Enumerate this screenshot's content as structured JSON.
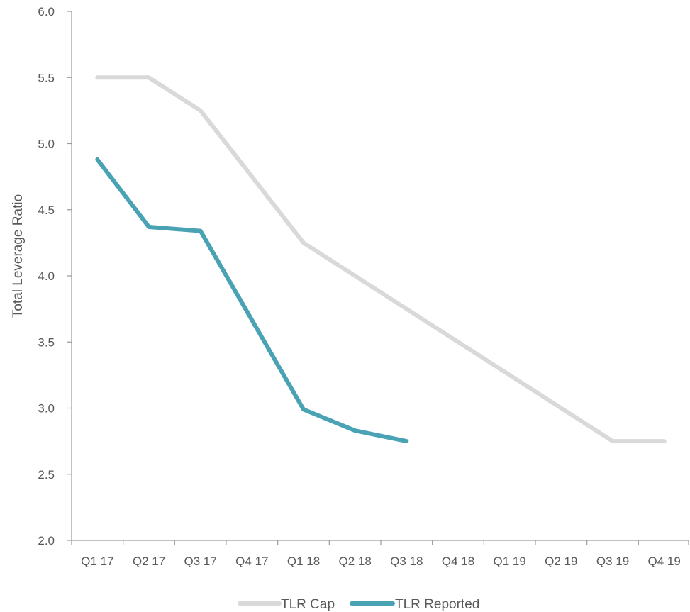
{
  "chart_data": {
    "type": "line",
    "title": "",
    "xlabel": "",
    "ylabel": "Total Leverage Ratio",
    "categories": [
      "Q1 17",
      "Q2 17",
      "Q3 17",
      "Q4 17",
      "Q1 18",
      "Q2 18",
      "Q3 18",
      "Q4 18",
      "Q1 19",
      "Q2 19",
      "Q3 19",
      "Q4 19"
    ],
    "ylim": [
      2.0,
      6.0
    ],
    "yticks": [
      "2.0",
      "2.5",
      "3.0",
      "3.5",
      "4.0",
      "4.5",
      "5.0",
      "5.5",
      "6.0"
    ],
    "grid": false,
    "legend_position": "bottom",
    "series": [
      {
        "name": "TLR Cap",
        "color": "#d9d9d9",
        "values": [
          5.5,
          5.5,
          5.25,
          null,
          4.25,
          4.0,
          3.75,
          null,
          null,
          null,
          2.75,
          2.75
        ]
      },
      {
        "name": "TLR Reported",
        "color": "#4aa3b5",
        "values": [
          4.88,
          4.37,
          4.34,
          null,
          2.99,
          2.83,
          2.75,
          null,
          null,
          null,
          null,
          null
        ]
      }
    ]
  }
}
